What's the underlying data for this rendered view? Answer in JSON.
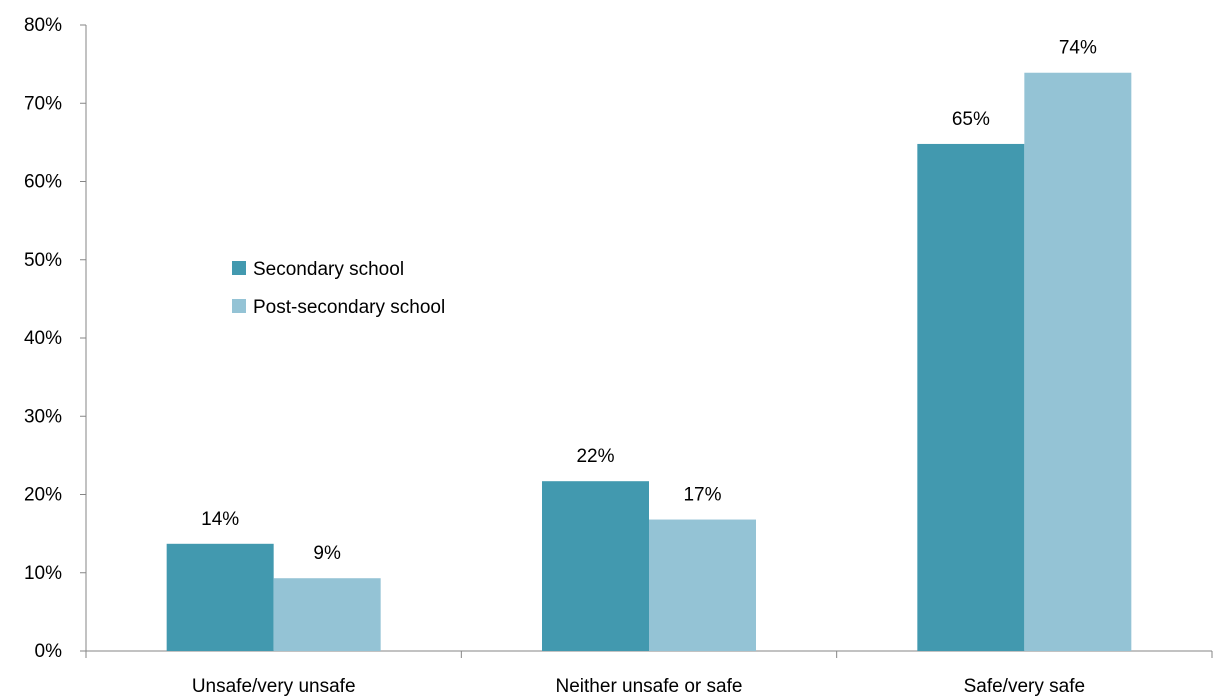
{
  "chart_data": {
    "type": "bar",
    "categories": [
      "Unsafe/very unsafe",
      "Neither unsafe or safe",
      "Safe/very safe"
    ],
    "series": [
      {
        "name": "Secondary school",
        "values": [
          14,
          22,
          65
        ],
        "value_labels": [
          "14%",
          "22%",
          "65%"
        ],
        "color": "#4299AF"
      },
      {
        "name": "Post-secondary school",
        "values": [
          9,
          17,
          74
        ],
        "value_labels": [
          "9%",
          "17%",
          "74%"
        ],
        "color": "#94C3D5"
      }
    ],
    "plotted_values": [
      [
        13.7,
        21.7,
        64.8
      ],
      [
        9.3,
        16.8,
        73.9
      ]
    ],
    "ylim": [
      0,
      80
    ],
    "yticks": [
      0,
      10,
      20,
      30,
      40,
      50,
      60,
      70,
      80
    ],
    "ytick_labels": [
      "0%",
      "10%",
      "20%",
      "30%",
      "40%",
      "50%",
      "60%",
      "70%",
      "80%"
    ],
    "title": "",
    "xlabel": "",
    "ylabel": "",
    "grid": false,
    "legend_position": "center-left",
    "axis_color": "#868686"
  }
}
